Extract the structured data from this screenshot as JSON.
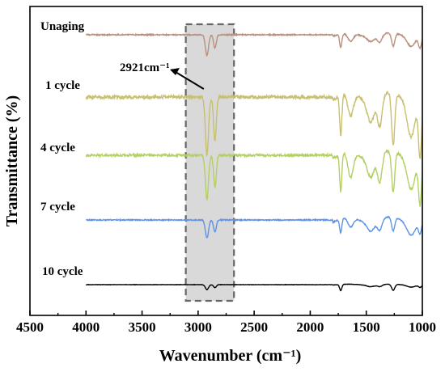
{
  "chart_data": {
    "type": "line",
    "title": "",
    "xlabel": "Wavenumber (cm⁻¹)",
    "ylabel": "Transmittance (%)",
    "xlim": [
      4500,
      1000
    ],
    "x_reversed": true,
    "x_ticks": [
      4500,
      4000,
      3500,
      3000,
      2500,
      2000,
      1500,
      1000
    ],
    "grid": false,
    "legend": "none (series labelled inline)",
    "highlight": {
      "x_range": [
        3110,
        2680
      ],
      "color": "#d9d9d9"
    },
    "annotation": {
      "text": "2921cm⁻¹",
      "x": 2921,
      "series": "1 cycle"
    },
    "series": [
      {
        "name": "Unaging",
        "color": "#b98f7f"
      },
      {
        "name": "1 cycle",
        "color": "#c8c070"
      },
      {
        "name": "4 cycle",
        "color": "#b3d064"
      },
      {
        "name": "7 cycle",
        "color": "#5f93e6"
      },
      {
        "name": "10 cycle",
        "color": "#000000"
      }
    ],
    "peaks_note": "Relative transmittance; y axis has no numeric ticks",
    "peaks": {
      "Unaging": {
        "2921": 0.85,
        "2850": 0.55,
        "1728": 0.55,
        "1640": 0.35,
        "1460": 0.2,
        "1380": 0.3,
        "1260": 0.55,
        "1100": 0.4,
        "1020": 0.5
      },
      "1 cycle": {
        "2921": 1.0,
        "2850": 0.75,
        "1728": 0.7,
        "1640": 0.4,
        "1460": 0.35,
        "1380": 0.5,
        "1260": 0.9,
        "1100": 0.6,
        "1020": 1.0
      },
      "4 cycle": {
        "2921": 0.75,
        "2850": 0.55,
        "1728": 0.65,
        "1640": 0.45,
        "1460": 0.3,
        "1380": 0.45,
        "1260": 0.7,
        "1100": 0.5,
        "1020": 0.8
      },
      "7 cycle": {
        "2921": 0.45,
        "2850": 0.3,
        "1728": 0.35,
        "1640": 0.25,
        "1460": 0.2,
        "1380": 0.25,
        "1260": 0.35,
        "1100": 0.3,
        "1020": 0.3
      },
      "10 cycle": {
        "2921": 0.25,
        "2850": 0.15,
        "1728": 0.3,
        "1460": 0.08,
        "1380": 0.1,
        "1260": 0.3,
        "1100": 0.1,
        "1020": 0.12
      }
    }
  }
}
